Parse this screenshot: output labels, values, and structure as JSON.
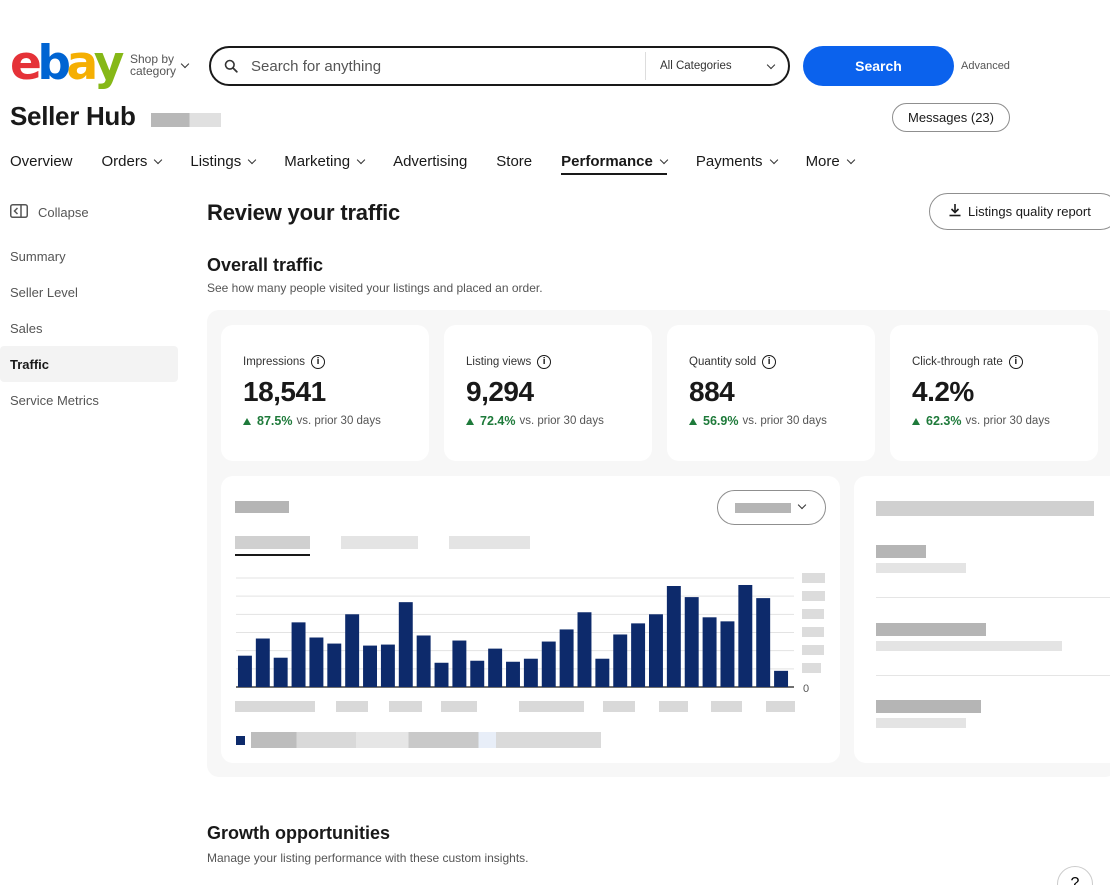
{
  "header": {
    "logo": {
      "letters": [
        {
          "ch": "e",
          "color": "#e53238"
        },
        {
          "ch": "b",
          "color": "#0064d2"
        },
        {
          "ch": "a",
          "color": "#f5af02"
        },
        {
          "ch": "y",
          "color": "#86b817"
        }
      ]
    },
    "shop_by_line1": "Shop by",
    "shop_by_line2": "category",
    "search_placeholder": "Search for anything",
    "category_select": "All Categories",
    "search_button": "Search",
    "advanced_link": "Advanced"
  },
  "hub": {
    "title": "Seller Hub",
    "messages_button": "Messages (23)"
  },
  "nav": {
    "items": [
      {
        "label": "Overview",
        "dropdown": false
      },
      {
        "label": "Orders",
        "dropdown": true
      },
      {
        "label": "Listings",
        "dropdown": true
      },
      {
        "label": "Marketing",
        "dropdown": true
      },
      {
        "label": "Advertising",
        "dropdown": false
      },
      {
        "label": "Store",
        "dropdown": false
      },
      {
        "label": "Performance",
        "dropdown": true,
        "active": true
      },
      {
        "label": "Payments",
        "dropdown": true
      },
      {
        "label": "More",
        "dropdown": true
      }
    ]
  },
  "sidebar": {
    "collapse_label": "Collapse",
    "items": [
      {
        "label": "Summary"
      },
      {
        "label": "Seller Level"
      },
      {
        "label": "Sales"
      },
      {
        "label": "Traffic",
        "active": true
      },
      {
        "label": "Service Metrics"
      }
    ]
  },
  "main": {
    "page_title": "Review your traffic",
    "report_button": "Listings quality report",
    "overall_title": "Overall traffic",
    "overall_subtitle": "See how many people visited your listings and placed an order.",
    "kpis": [
      {
        "label": "Impressions",
        "value": "18,541",
        "change": "87.5%",
        "compare": "vs. prior 30 days"
      },
      {
        "label": "Listing views",
        "value": "9,294",
        "change": "72.4%",
        "compare": "vs. prior 30 days"
      },
      {
        "label": "Quantity sold",
        "value": "884",
        "change": "56.9%",
        "compare": "vs. prior 30 days"
      },
      {
        "label": "Click-through rate",
        "value": "4.2%",
        "change": "62.3%",
        "compare": "vs. prior 30 days"
      }
    ],
    "growth_title": "Growth opportunities",
    "growth_subtitle": "Manage your listing performance with these custom insights.",
    "help_label": "?"
  },
  "chart_data": {
    "type": "bar",
    "title": "",
    "y_zero_label": "0",
    "ylim": [
      0,
      100
    ],
    "values": [
      31,
      48,
      29,
      64,
      49,
      43,
      72,
      41,
      42,
      84,
      51,
      24,
      46,
      26,
      38,
      25,
      28,
      45,
      57,
      74,
      28,
      52,
      63,
      72,
      100,
      89,
      69,
      65,
      101,
      88,
      16
    ],
    "bar_color": "#0d2a6b"
  }
}
